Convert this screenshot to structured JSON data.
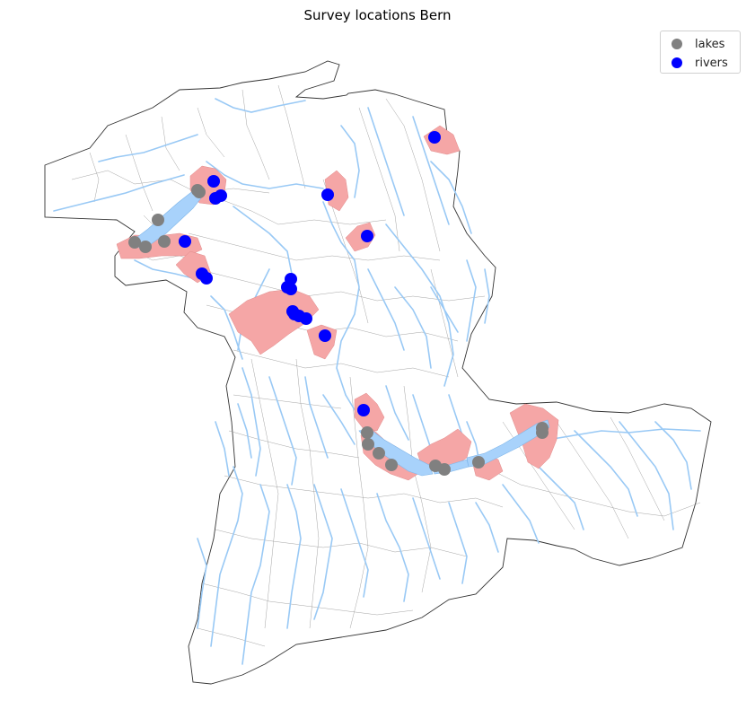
{
  "title": "Survey locations Bern",
  "colors": {
    "lakes_marker": "#808080",
    "rivers_marker": "#0000ff",
    "water_features": "#99c9f5",
    "surveyed_municipality": "#f5a6a6",
    "boundary": "#333333"
  },
  "legend": {
    "items": [
      {
        "label": "lakes",
        "color": "#808080"
      },
      {
        "label": "rivers",
        "color": "#0000ff"
      }
    ]
  },
  "survey_points": {
    "lakes": 15,
    "rivers": 18
  }
}
